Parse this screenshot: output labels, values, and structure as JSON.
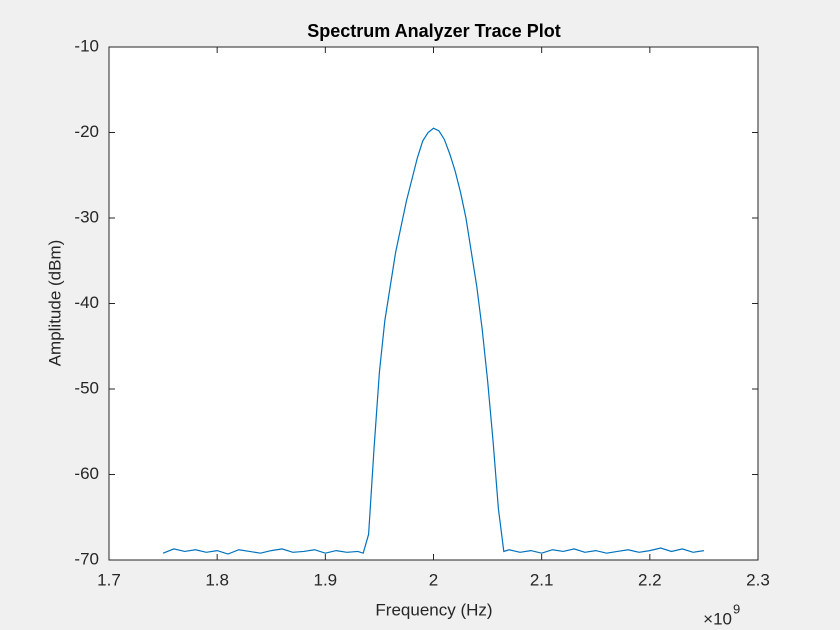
{
  "chart_data": {
    "type": "line",
    "title": "Spectrum Analyzer Trace Plot",
    "x_label": "Frequency (Hz)",
    "y_label": "Amplitude (dBm)",
    "x_multiplier": {
      "base": "×10",
      "exponent": "9"
    },
    "color": "#0072bd",
    "xlim": [
      1.7,
      2.3
    ],
    "xticks": [
      1.7,
      1.8,
      1.9,
      2,
      2.1,
      2.2,
      2.3
    ],
    "ylim": [
      -70,
      -10
    ],
    "yticks": [
      -70,
      -60,
      -50,
      -40,
      -30,
      -20,
      -10
    ],
    "x": [
      1.75,
      1.76,
      1.77,
      1.78,
      1.79,
      1.8,
      1.81,
      1.82,
      1.83,
      1.84,
      1.85,
      1.86,
      1.87,
      1.88,
      1.89,
      1.9,
      1.91,
      1.92,
      1.93,
      1.935,
      1.94,
      1.945,
      1.95,
      1.955,
      1.96,
      1.965,
      1.97,
      1.975,
      1.98,
      1.985,
      1.99,
      1.995,
      2,
      2.005,
      2.01,
      2.015,
      2.02,
      2.025,
      2.03,
      2.035,
      2.04,
      2.045,
      2.05,
      2.055,
      2.06,
      2.065,
      2.07,
      2.08,
      2.09,
      2.1,
      2.11,
      2.12,
      2.13,
      2.14,
      2.15,
      2.16,
      2.17,
      2.18,
      2.19,
      2.2,
      2.21,
      2.22,
      2.23,
      2.24,
      2.25
    ],
    "values": [
      -69.2,
      -68.7,
      -69.0,
      -68.8,
      -69.1,
      -68.9,
      -69.3,
      -68.8,
      -69.0,
      -69.2,
      -68.9,
      -68.7,
      -69.1,
      -69.0,
      -68.8,
      -69.2,
      -68.9,
      -69.1,
      -69.0,
      -69.2,
      -67,
      -57,
      -48,
      -42,
      -38,
      -34,
      -31,
      -28,
      -25.5,
      -23,
      -21,
      -20,
      -19.5,
      -19.8,
      -20.8,
      -22.5,
      -24.5,
      -27,
      -30,
      -34,
      -38,
      -43,
      -49,
      -56,
      -64,
      -69,
      -68.8,
      -69.1,
      -68.9,
      -69.2,
      -68.8,
      -69.0,
      -68.7,
      -69.1,
      -68.9,
      -69.2,
      -69.0,
      -68.8,
      -69.1,
      -68.9,
      -68.6,
      -69.0,
      -68.7,
      -69.1,
      -68.9
    ]
  }
}
